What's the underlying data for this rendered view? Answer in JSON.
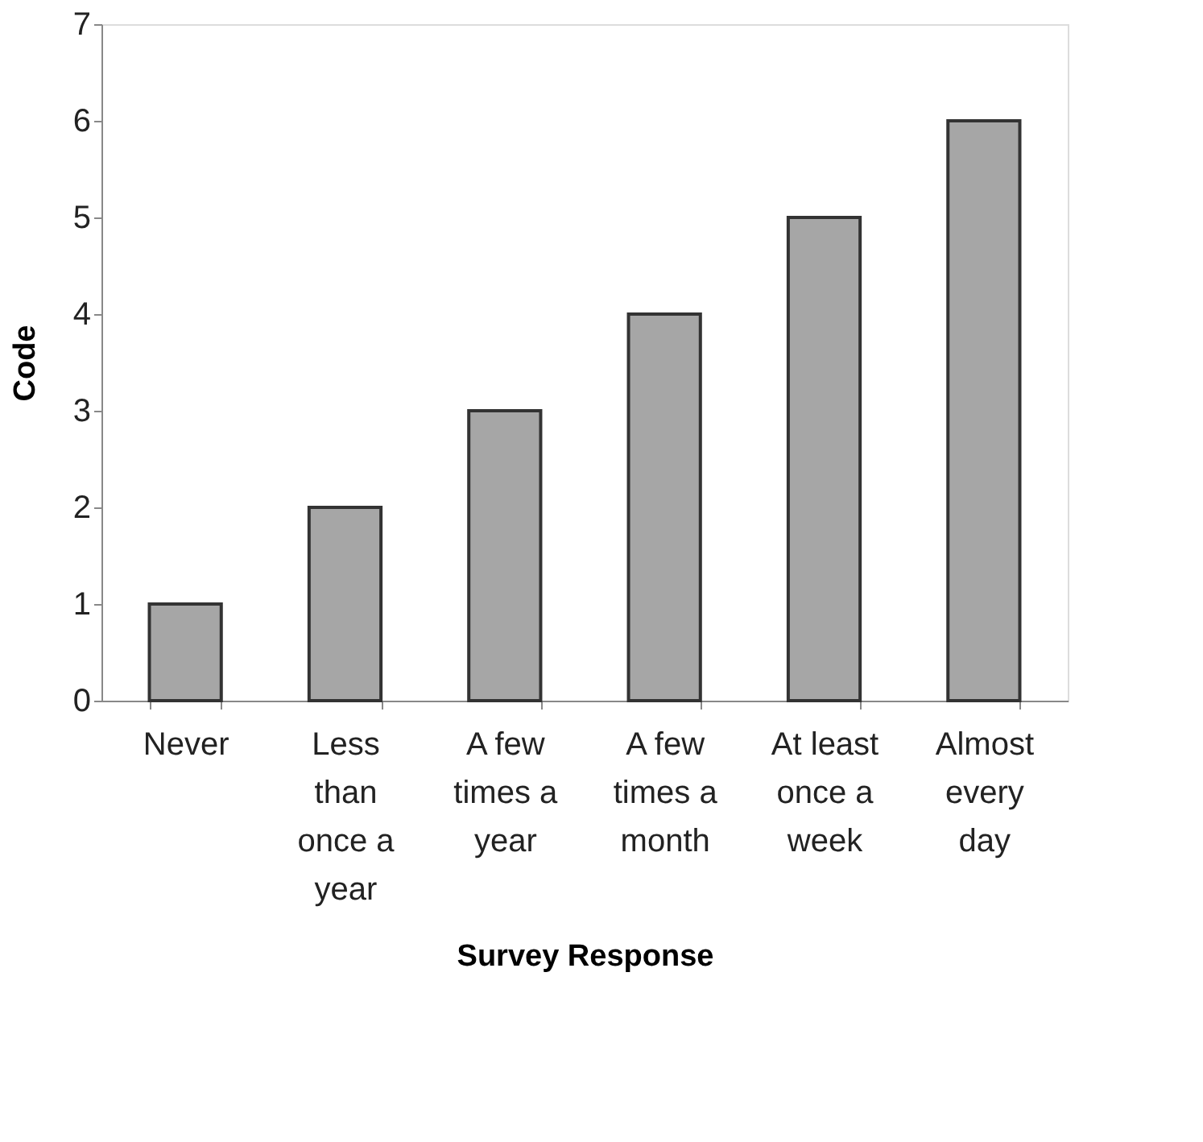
{
  "chart_data": {
    "type": "bar",
    "xlabel": "Survey Response",
    "ylabel": "Code",
    "categories": [
      "Never",
      "Less than once a year",
      "A few times a year",
      "A few times a month",
      "At least once a week",
      "Almost every day"
    ],
    "values": [
      1,
      2,
      3,
      4,
      5,
      6
    ],
    "color": "#a6a6a6",
    "ylim": [
      0,
      7
    ],
    "yticks": [
      0,
      1,
      2,
      3,
      4,
      5,
      6,
      7
    ],
    "grid": false
  }
}
